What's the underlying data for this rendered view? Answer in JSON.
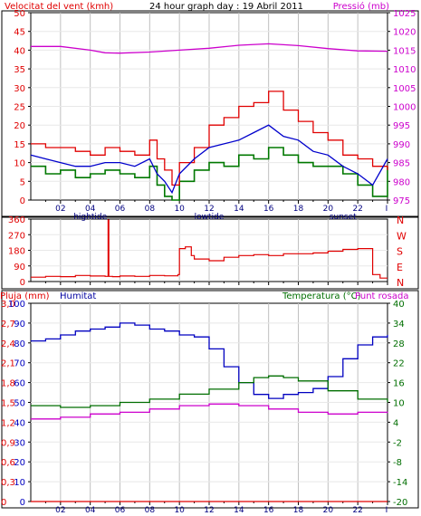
{
  "header": {
    "left_label": "Velocitat del vent (kmh)",
    "center_label": "24 hour graph day : 19 Abril 2011",
    "right_label": "Pressió (mb)"
  },
  "colors": {
    "wind_gust": "#e00000",
    "wind_avg": "#0000cc",
    "wind_low": "#007800",
    "pressure": "#cc00cc",
    "direction": "#e00000",
    "humidity": "#0000c0",
    "temperature": "#006e00",
    "dewpoint": "#cc00cc",
    "rain": "#e00000",
    "grid": "#c0c0c0"
  },
  "x_axis": {
    "hour_labels": [
      "02",
      "04",
      "06",
      "08",
      "10",
      "12",
      "14",
      "16",
      "18",
      "20",
      "22"
    ],
    "event_labels": [
      {
        "hour": 4,
        "text": "hightide"
      },
      {
        "hour": 12,
        "text": "lowtide"
      },
      {
        "hour": 21,
        "text": "sunset"
      }
    ]
  },
  "chart_data": [
    {
      "type": "line",
      "title": "24 hour graph day : 19 Abril 2011",
      "ylabel": "Velocitat del vent (kmh)",
      "y2label": "Pressió (mb)",
      "x_range": [
        0,
        24
      ],
      "ylim": [
        0,
        50
      ],
      "y2lim": [
        975,
        1025
      ],
      "left_ticks": [
        "0",
        "5",
        "10",
        "15",
        "20",
        "25",
        "30",
        "35",
        "40",
        "45",
        "50"
      ],
      "right_ticks": [
        "975",
        "980",
        "985",
        "990",
        "995",
        "1000",
        "1005",
        "1010",
        "1015",
        "1020",
        "1025"
      ],
      "series": [
        {
          "key": "gust",
          "axis": "left",
          "step": true,
          "x": [
            0,
            1,
            2,
            3,
            4,
            5,
            6,
            7,
            8,
            8.5,
            9,
            9.5,
            10,
            11,
            12,
            13,
            14,
            15,
            16,
            17,
            18,
            19,
            20,
            21,
            22,
            23,
            24
          ],
          "y": [
            15,
            14,
            14,
            13,
            12,
            14,
            13,
            12,
            16,
            11,
            8,
            4,
            10,
            14,
            20,
            22,
            25,
            26,
            29,
            24,
            21,
            18,
            16,
            12,
            11,
            9,
            8
          ]
        },
        {
          "key": "avg",
          "axis": "left",
          "x": [
            0,
            1,
            2,
            3,
            4,
            5,
            6,
            7,
            8,
            8.5,
            9,
            9.5,
            10,
            11,
            12,
            13,
            14,
            15,
            16,
            17,
            18,
            19,
            20,
            21,
            22,
            23,
            24
          ],
          "y": [
            12,
            11,
            10,
            9,
            9,
            10,
            10,
            9,
            11,
            7,
            5,
            2,
            7,
            11,
            14,
            15,
            16,
            18,
            20,
            17,
            16,
            13,
            12,
            9,
            7,
            4,
            11
          ]
        },
        {
          "key": "low",
          "axis": "left",
          "step": true,
          "x": [
            0,
            1,
            2,
            3,
            4,
            5,
            6,
            7,
            8,
            8.5,
            9,
            9.5,
            10,
            11,
            12,
            13,
            14,
            15,
            16,
            17,
            18,
            19,
            20,
            21,
            22,
            23,
            24
          ],
          "y": [
            9,
            7,
            8,
            6,
            7,
            8,
            7,
            6,
            9,
            4,
            1,
            0,
            5,
            8,
            10,
            9,
            12,
            11,
            14,
            12,
            10,
            9,
            9,
            7,
            4,
            1,
            9
          ]
        },
        {
          "key": "pressure",
          "axis": "right",
          "x": [
            0,
            2,
            4,
            5,
            6,
            8,
            10,
            12,
            14,
            16,
            18,
            20,
            22,
            24
          ],
          "y": [
            1016,
            1016,
            1015,
            1014.3,
            1014.2,
            1014.5,
            1015,
            1015.5,
            1016.3,
            1016.7,
            1016.2,
            1015.4,
            1014.8,
            1014.7
          ]
        }
      ]
    },
    {
      "type": "line",
      "ylabel_right": "N W S E N",
      "x_range": [
        0,
        24
      ],
      "ylim": [
        0,
        360
      ],
      "left_ticks": [
        "0",
        "90",
        "180",
        "270",
        "360"
      ],
      "right_ticks": [
        "N",
        "E",
        "S",
        "W",
        "N"
      ],
      "series": [
        {
          "key": "direction",
          "step": true,
          "x": [
            0,
            1,
            2,
            3,
            4,
            5,
            5.2,
            5.25,
            5.5,
            6,
            7,
            8,
            9,
            9.9,
            10,
            10.4,
            10.8,
            11,
            12,
            13,
            14,
            15,
            16,
            17,
            18,
            19,
            20,
            21,
            22,
            22.4,
            23,
            23.5,
            24
          ],
          "y": [
            25,
            30,
            28,
            35,
            32,
            30,
            355,
            30,
            28,
            32,
            30,
            35,
            33,
            40,
            190,
            200,
            150,
            130,
            120,
            140,
            150,
            155,
            150,
            160,
            160,
            165,
            175,
            185,
            190,
            190,
            40,
            20,
            20
          ]
        }
      ]
    },
    {
      "type": "line",
      "left_title": "Pluja (mm)",
      "humidity_title": "Humitat",
      "right_title": "Temperatura (°C)",
      "dew_title": "Punt rosada",
      "x_range": [
        0,
        24
      ],
      "ylim_humidity": [
        0,
        100
      ],
      "ylim_temp": [
        -20,
        40
      ],
      "ylim_rain": [
        0,
        3.0
      ],
      "left_ticks_humidity": [
        "0",
        "10",
        "20",
        "30",
        "40",
        "50",
        "60",
        "70",
        "80",
        "90",
        "100"
      ],
      "left_ticks_rain": [
        "0",
        "0,3",
        "0,6",
        "0,9",
        "1,2",
        "1,5",
        "1,8",
        "2,1",
        "2,4",
        "2,7",
        "3,0"
      ],
      "right_ticks_temp": [
        "-20",
        "-14",
        "-8",
        "-2",
        "4",
        "10",
        "16",
        "22",
        "28",
        "34",
        "40"
      ],
      "series": [
        {
          "key": "humidity",
          "axis": "humidity",
          "step": true,
          "x": [
            0,
            1,
            2,
            3,
            4,
            5,
            6,
            7,
            8,
            9,
            10,
            11,
            12,
            13,
            14,
            15,
            16,
            17,
            18,
            19,
            20,
            21,
            22,
            23,
            24
          ],
          "y": [
            81,
            82,
            84,
            86,
            87,
            88,
            90,
            89,
            87,
            86,
            84,
            83,
            77,
            68,
            60,
            54,
            52,
            54,
            55,
            57,
            63,
            72,
            79,
            83,
            84
          ]
        },
        {
          "key": "temperature",
          "axis": "temp",
          "step": true,
          "x": [
            0,
            2,
            4,
            6,
            8,
            10,
            12,
            14,
            15,
            16,
            17,
            18,
            20,
            22,
            24
          ],
          "y": [
            9,
            8.5,
            9,
            10,
            11,
            12.5,
            14,
            16,
            17.5,
            18,
            17.5,
            16.5,
            13.5,
            11,
            10
          ]
        },
        {
          "key": "dewpoint",
          "axis": "temp",
          "step": true,
          "x": [
            0,
            2,
            4,
            6,
            8,
            10,
            12,
            14,
            16,
            18,
            20,
            22,
            24
          ],
          "y": [
            5,
            5.5,
            6.5,
            7,
            8,
            9,
            9.5,
            9,
            8,
            7,
            6.5,
            7,
            6.8
          ]
        },
        {
          "key": "rain",
          "axis": "rain",
          "x": [
            0,
            24
          ],
          "y": [
            0,
            0
          ]
        }
      ]
    }
  ]
}
